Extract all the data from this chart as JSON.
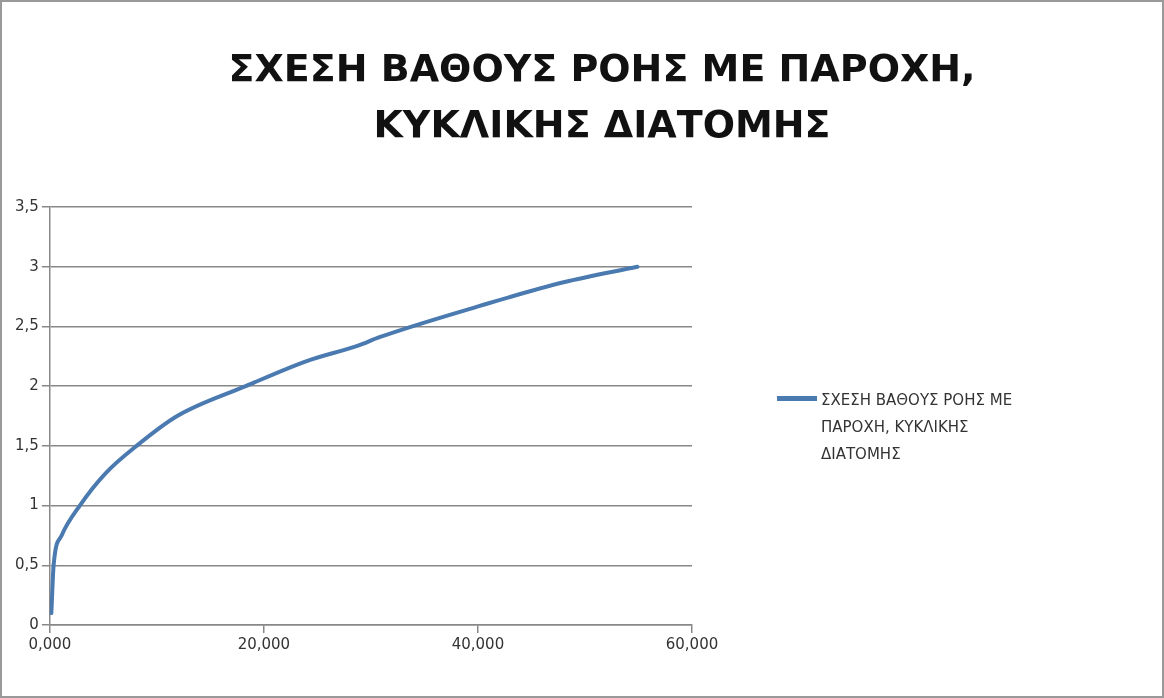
{
  "chart_data": {
    "type": "line",
    "title": "ΣΧΕΣΗ ΒΑΘΟΥΣ ΡΟΗΣ ΜΕ ΠΑΡΟΧΗ, ΚΥΚΛΙΚΗΣ ΔΙΑΤΟΜΗΣ",
    "x": [
      0.14,
      0.35,
      1.1,
      2.8,
      5.2,
      8.1,
      11.9,
      18.3,
      24,
      28.8,
      30.8,
      40.1,
      48,
      54.9
    ],
    "series": [
      {
        "name": "ΣΧΕΣΗ ΒΑΘΟΥΣ ΡΟΗΣ ΜΕ ΠΑΡΟΧΗ, ΚΥΚΛΙΚΗΣ ΔΙΑΤΟΜΗΣ",
        "color": "#4a7ab0",
        "values": [
          0.1,
          0.5,
          0.75,
          1.0,
          1.27,
          1.5,
          1.75,
          2.0,
          2.21,
          2.34,
          2.41,
          2.67,
          2.87,
          3.0
        ]
      }
    ],
    "xlim": [
      0,
      60
    ],
    "xticks": [
      {
        "value": 0,
        "label": "0,000"
      },
      {
        "value": 20,
        "label": "20,000"
      },
      {
        "value": 40,
        "label": "40,000"
      },
      {
        "value": 60,
        "label": "60,000"
      }
    ],
    "ylim": [
      0,
      3.5
    ],
    "yticks": [
      0,
      {
        "value": 0.5,
        "label": "0,5"
      },
      1,
      {
        "value": 1.5,
        "label": "1,5"
      },
      2,
      {
        "value": 2.5,
        "label": "2,5"
      },
      3,
      {
        "value": 3.5,
        "label": "3,5"
      }
    ],
    "grid": "y",
    "legend": "right",
    "marker": "none",
    "line_style": "solid"
  }
}
